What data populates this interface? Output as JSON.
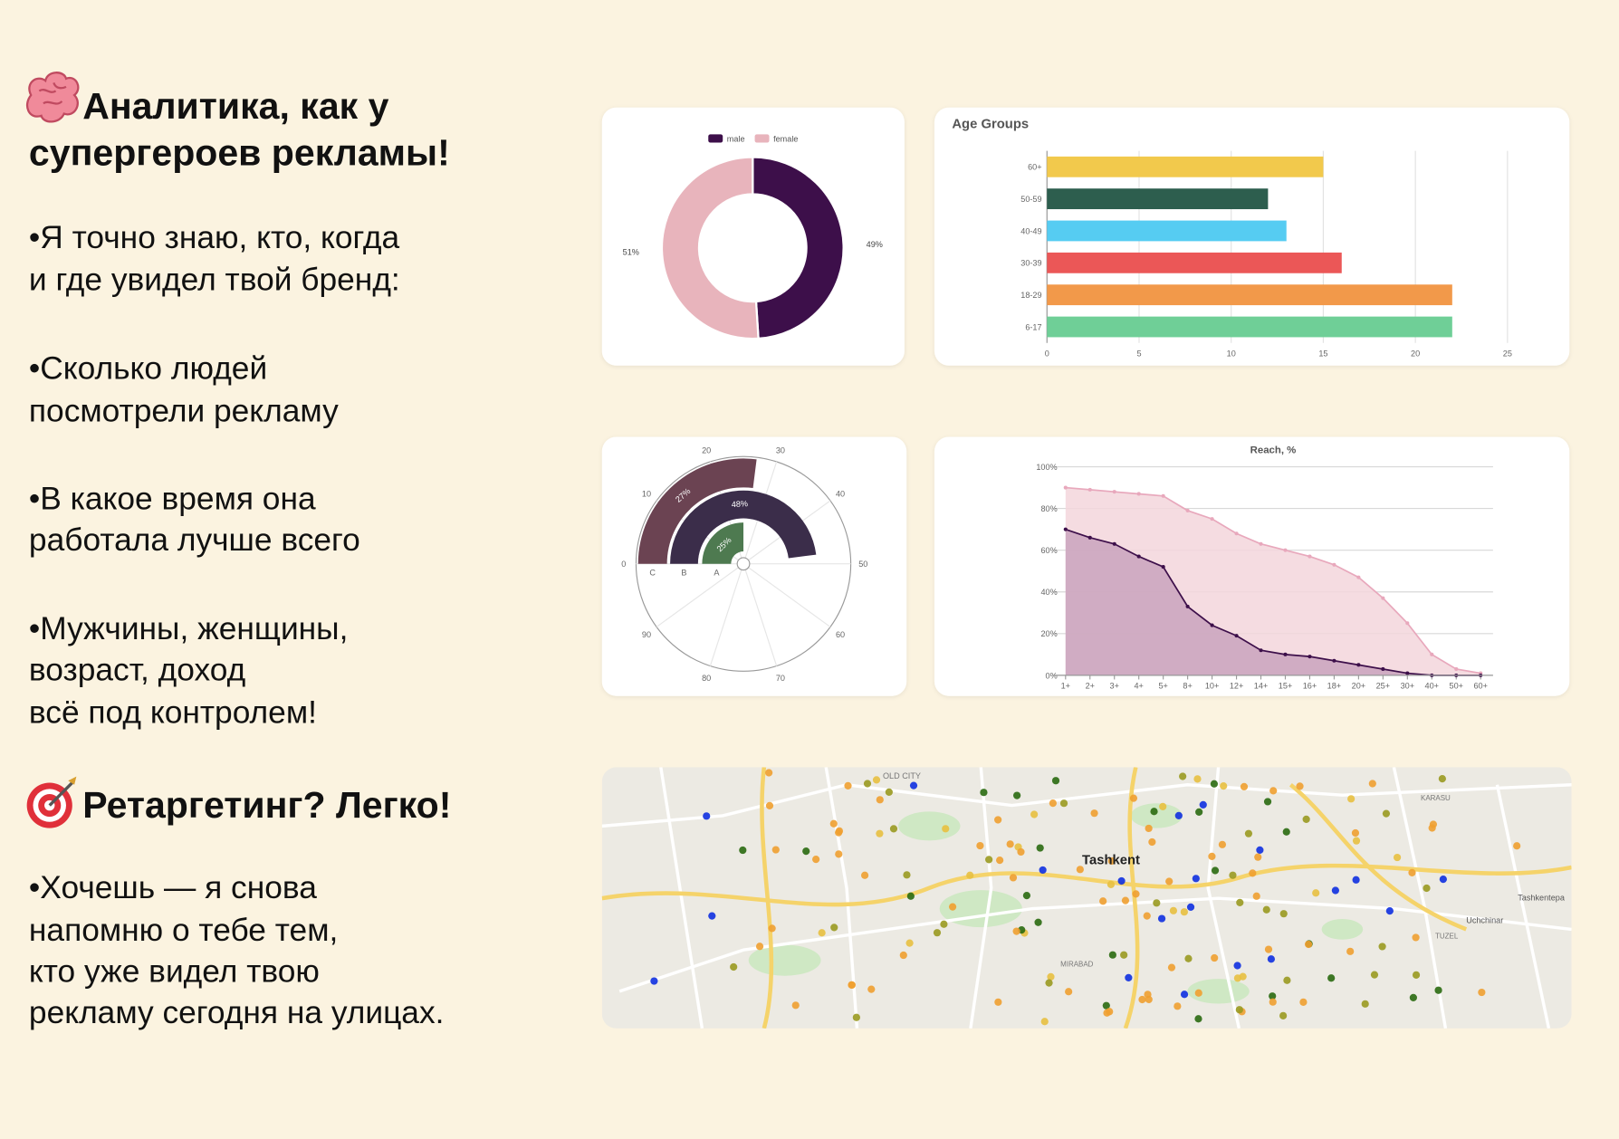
{
  "heading": {
    "lines": [
      "Аналитика, как у",
      "супергероев рекламы!"
    ]
  },
  "bullets": [
    {
      "lines": [
        "•Я точно знаю, кто, когда",
        "и где увидел твой бренд:"
      ]
    },
    {
      "lines": [
        "•Сколько людей",
        "посмотрели рекламу"
      ]
    },
    {
      "lines": [
        "•В какое время она",
        "работала лучше всего"
      ]
    },
    {
      "lines": [
        "•Мужчины, женщины,",
        "возраст, доход",
        "всё под контролем!"
      ]
    }
  ],
  "retargeting": {
    "title": "Ретаргетинг? Легко!",
    "lines": [
      "•Хочешь — я снова",
      "напомню о тебе тем,",
      "кто уже видел твою",
      "рекламу сегодня на улицах."
    ]
  },
  "chart_data": [
    {
      "type": "donut",
      "categories": [
        "male",
        "female"
      ],
      "values": [
        49,
        51
      ],
      "value_labels": [
        "49%",
        "51%"
      ],
      "colors": [
        "#3d0f4a",
        "#e8b4bc"
      ],
      "legend": "top"
    },
    {
      "type": "hbar",
      "title": "Age Groups",
      "categories": [
        "60+",
        "50-59",
        "40-49",
        "30-39",
        "18-29",
        "6-17"
      ],
      "values": [
        15,
        12,
        13,
        16,
        22,
        22
      ],
      "colors": [
        "#f2c94c",
        "#2d5e4e",
        "#56ccf2",
        "#eb5757",
        "#f2994a",
        "#6fcf97"
      ],
      "xlim": [
        0,
        25
      ],
      "xticks": [
        0,
        5,
        10,
        15,
        20,
        25
      ],
      "grid": true
    },
    {
      "type": "radial_bar",
      "categories": [
        "A",
        "B",
        "C"
      ],
      "values": [
        25,
        48,
        27
      ],
      "value_labels": [
        "25%",
        "48%",
        "27%"
      ],
      "colors": [
        "#4e7a50",
        "#3b2d4a",
        "#6b4352"
      ],
      "anglelim": [
        0,
        100
      ],
      "angleticks": [
        0,
        10,
        20,
        30,
        40,
        50,
        60,
        70,
        80,
        90
      ]
    },
    {
      "type": "area",
      "title": "Reach, %",
      "categories": [
        "1+",
        "2+",
        "3+",
        "4+",
        "5+",
        "8+",
        "10+",
        "12+",
        "14+",
        "15+",
        "16+",
        "18+",
        "20+",
        "25+",
        "30+",
        "40+",
        "50+",
        "60+"
      ],
      "series": [
        {
          "color": "#e8a8bc",
          "fill": "#f3d6dc",
          "values": [
            90,
            89,
            88,
            87,
            86,
            79,
            75,
            68,
            63,
            60,
            57,
            53,
            47,
            37,
            25,
            10,
            3,
            1
          ]
        },
        {
          "color": "#3d0f4a",
          "fill": "#c9a3bd",
          "values": [
            70,
            66,
            63,
            57,
            52,
            33,
            24,
            19,
            12,
            10,
            9,
            7,
            5,
            3,
            1,
            0,
            0,
            0
          ]
        }
      ],
      "ylim": [
        0,
        100
      ],
      "yticks": [
        {
          "value": 0,
          "label": "0%"
        },
        {
          "value": 20,
          "label": "20%"
        },
        {
          "value": 40,
          "label": "40%"
        },
        {
          "value": 60,
          "label": "60%"
        },
        {
          "value": 80,
          "label": "80%"
        },
        {
          "value": 100,
          "label": "100%"
        }
      ],
      "grid": true
    }
  ],
  "map": {
    "labels": [
      "Tashkent",
      "OLD CITY",
      "Uchchinar",
      "TUZEL",
      "KARASU",
      "MIRABAD",
      "Tashkentepa"
    ]
  }
}
